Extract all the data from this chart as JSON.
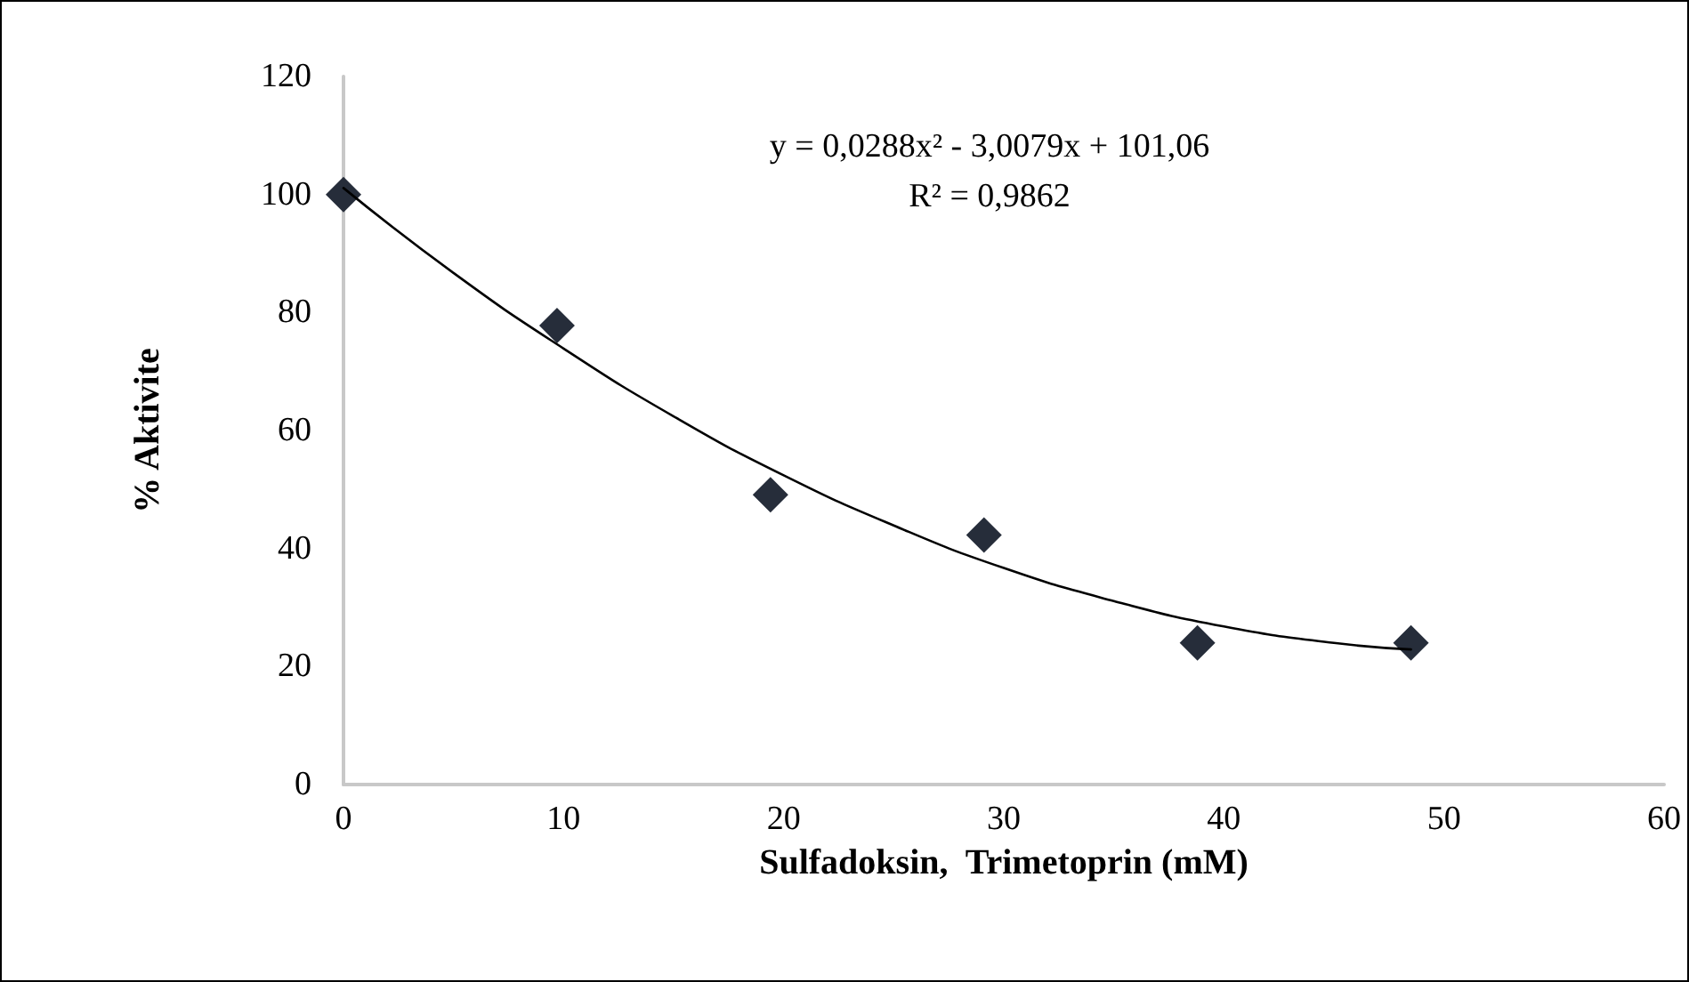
{
  "chart_data": {
    "type": "scatter",
    "xlabel": "Sulfadoksin,  Trimetoprin (mM)",
    "ylabel": "% Aktivite",
    "annotations": [
      "y = 0,0288x² - 3,0079x + 101,06",
      "R² = 0,9862"
    ],
    "series": [
      {
        "color": "#262d3a",
        "marker": "diamond",
        "x": [
          0,
          9.7,
          19.4,
          29.1,
          38.8,
          48.5
        ],
        "values": [
          100,
          77.8,
          49.1,
          42.3,
          24,
          24
        ]
      },
      {
        "type": "line",
        "color": "#000000",
        "marker": "none",
        "line_style": "solid",
        "x": [
          0,
          5,
          10,
          15,
          20,
          25,
          30,
          35,
          40,
          45,
          48.5
        ],
        "values": [
          101.1,
          86.7,
          73.9,
          62.4,
          52.4,
          43.9,
          36.7,
          31.1,
          26.8,
          24,
          22.9
        ]
      }
    ],
    "xlim": [
      0,
      60
    ],
    "xticks": [
      0,
      10,
      20,
      30,
      40,
      50,
      60
    ],
    "ylim": [
      0,
      120
    ],
    "yticks": [
      0,
      20,
      40,
      60,
      80,
      100,
      120
    ],
    "grid": false
  }
}
